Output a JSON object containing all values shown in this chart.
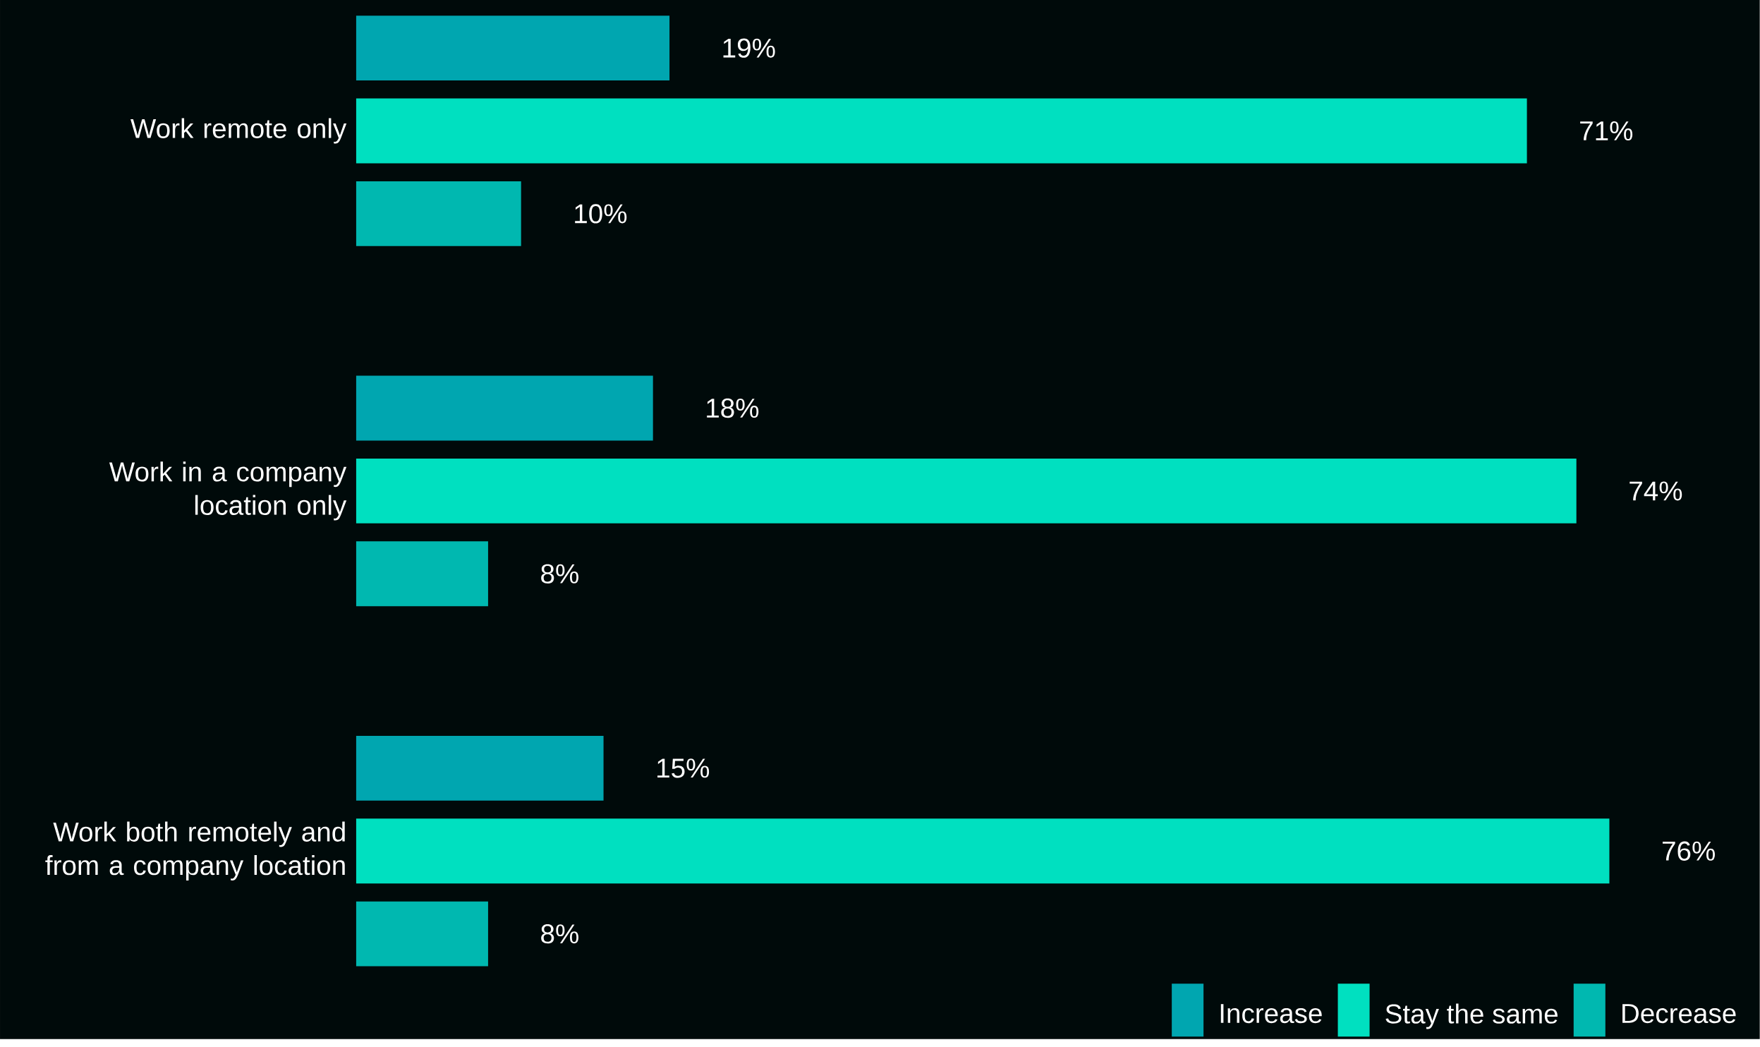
{
  "chart_data": {
    "type": "bar",
    "orientation": "horizontal",
    "legend": "bottom right",
    "categories": [
      "Work remote only",
      "Work in a company location only",
      "Work both remotely and from a company location"
    ],
    "series": [
      {
        "name": "Increase",
        "color": "#00a6b0",
        "values": [
          19,
          18,
          15
        ],
        "value_labels": [
          "19%",
          "18%",
          "15%"
        ]
      },
      {
        "name": "Stay the same",
        "color": "#00e0c0",
        "values": [
          71,
          74,
          76
        ],
        "value_labels": [
          "71%",
          "74%",
          "76%"
        ]
      },
      {
        "name": "Decrease",
        "color": "#00b8b0",
        "values": [
          10,
          8,
          8
        ],
        "value_labels": [
          "10%",
          "8%",
          "8%"
        ]
      }
    ]
  }
}
